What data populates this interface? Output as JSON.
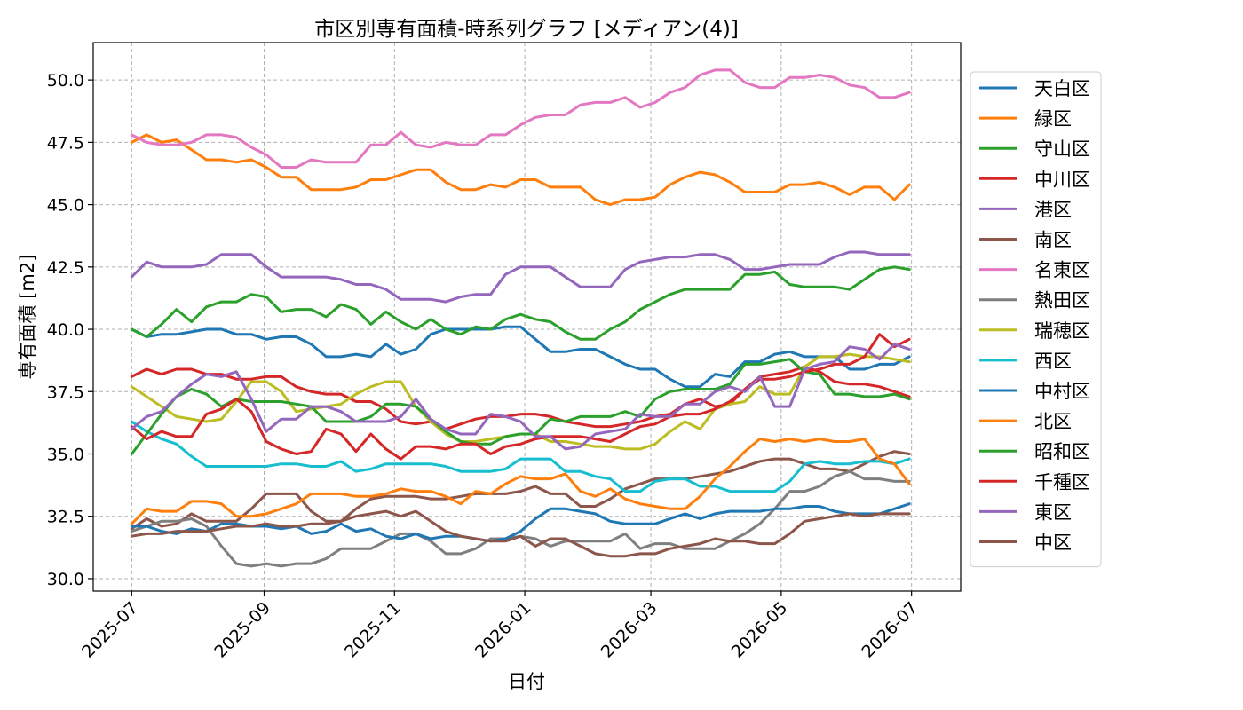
{
  "chart_data": {
    "type": "line",
    "title": "市区別専有面積-時系列グラフ [メディアン(4)]",
    "xlabel": "日付",
    "ylabel": "専有面積 [m2]",
    "x_ticks": [
      "2025-07",
      "2025-09",
      "2025-11",
      "2026-01",
      "2026-03",
      "2026-05",
      "2026-07"
    ],
    "y_ticks": [
      "30.0",
      "32.5",
      "35.0",
      "37.5",
      "40.0",
      "42.5",
      "45.0",
      "47.5",
      "50.0"
    ],
    "xlim": [
      "2025-06-13",
      "2026-07-24"
    ],
    "ylim": [
      29.5,
      51.5
    ],
    "grid": true,
    "legend_position": "right",
    "x": [
      "2025-07-01",
      "2025-07-08",
      "2025-07-15",
      "2025-07-22",
      "2025-07-29",
      "2025-08-05",
      "2025-08-12",
      "2025-08-19",
      "2025-08-26",
      "2025-09-02",
      "2025-09-09",
      "2025-09-16",
      "2025-09-23",
      "2025-09-30",
      "2025-10-07",
      "2025-10-14",
      "2025-10-21",
      "2025-10-28",
      "2025-11-04",
      "2025-11-11",
      "2025-11-18",
      "2025-11-25",
      "2025-12-02",
      "2025-12-09",
      "2025-12-16",
      "2025-12-23",
      "2025-12-30",
      "2026-01-06",
      "2026-01-13",
      "2026-01-20",
      "2026-01-27",
      "2026-02-03",
      "2026-02-10",
      "2026-02-17",
      "2026-02-24",
      "2026-03-03",
      "2026-03-10",
      "2026-03-17",
      "2026-03-24",
      "2026-03-31",
      "2026-04-07",
      "2026-04-14",
      "2026-04-21",
      "2026-04-28",
      "2026-05-05",
      "2026-05-12",
      "2026-05-19",
      "2026-05-26",
      "2026-06-02",
      "2026-06-09",
      "2026-06-16",
      "2026-06-23",
      "2026-06-30"
    ],
    "series": [
      {
        "name": "天白区",
        "color": "#1f77b4",
        "values": [
          40.0,
          39.7,
          39.8,
          39.8,
          39.9,
          40.0,
          40.0,
          39.8,
          39.8,
          39.6,
          39.7,
          39.7,
          39.4,
          38.9,
          38.9,
          39.0,
          38.9,
          39.4,
          39.0,
          39.2,
          39.8,
          40.0,
          40.0,
          40.0,
          40.0,
          40.1,
          40.1,
          39.6,
          39.1,
          39.1,
          39.2,
          39.2,
          38.9,
          38.6,
          38.4,
          38.4,
          38.0,
          37.7,
          37.7,
          38.2,
          38.1,
          38.7,
          38.7,
          39.0,
          39.1,
          38.9,
          38.9,
          38.9,
          38.4,
          38.4,
          38.6,
          38.6,
          38.9
        ]
      },
      {
        "name": "緑区",
        "color": "#ff7f0e",
        "values": [
          47.5,
          47.8,
          47.5,
          47.6,
          47.2,
          46.8,
          46.8,
          46.7,
          46.8,
          46.5,
          46.1,
          46.1,
          45.6,
          45.6,
          45.6,
          45.7,
          46.0,
          46.0,
          46.2,
          46.4,
          46.4,
          45.9,
          45.6,
          45.6,
          45.8,
          45.7,
          46.0,
          46.0,
          45.7,
          45.7,
          45.7,
          45.2,
          45.0,
          45.2,
          45.2,
          45.3,
          45.8,
          46.1,
          46.3,
          46.2,
          45.9,
          45.5,
          45.5,
          45.5,
          45.8,
          45.8,
          45.9,
          45.7,
          45.4,
          45.7,
          45.7,
          45.2,
          45.8
        ]
      },
      {
        "name": "守山区",
        "color": "#2ca02c",
        "values": [
          40.0,
          39.7,
          40.2,
          40.8,
          40.3,
          40.9,
          41.1,
          41.1,
          41.4,
          41.3,
          40.7,
          40.8,
          40.8,
          40.5,
          41.0,
          40.8,
          40.2,
          40.7,
          40.3,
          40.0,
          40.4,
          40.0,
          39.8,
          40.1,
          40.0,
          40.4,
          40.6,
          40.4,
          40.3,
          39.9,
          39.6,
          39.6,
          40.0,
          40.3,
          40.8,
          41.1,
          41.4,
          41.6,
          41.6,
          41.6,
          41.6,
          42.2,
          42.2,
          42.3,
          41.8,
          41.7,
          41.7,
          41.7,
          41.6,
          42.0,
          42.4,
          42.5,
          42.4
        ]
      },
      {
        "name": "中川区",
        "color": "#d62728",
        "values": [
          38.1,
          38.4,
          38.2,
          38.4,
          38.4,
          38.2,
          38.2,
          38.0,
          38.0,
          38.1,
          38.1,
          37.7,
          37.5,
          37.4,
          37.4,
          37.1,
          37.1,
          36.8,
          36.3,
          36.2,
          36.3,
          36.0,
          36.2,
          36.4,
          36.5,
          36.5,
          36.6,
          36.6,
          36.5,
          36.3,
          36.2,
          36.1,
          36.1,
          36.2,
          36.3,
          36.5,
          36.6,
          37.0,
          37.2,
          36.9,
          37.0,
          37.6,
          38.1,
          38.2,
          38.3,
          38.5,
          38.3,
          37.9,
          37.8,
          37.8,
          37.7,
          37.5,
          37.3
        ]
      },
      {
        "name": "港区",
        "color": "#9467bd",
        "values": [
          42.1,
          42.7,
          42.5,
          42.5,
          42.5,
          42.6,
          43.0,
          43.0,
          43.0,
          42.5,
          42.1,
          42.1,
          42.1,
          42.1,
          42.0,
          41.8,
          41.8,
          41.6,
          41.2,
          41.2,
          41.2,
          41.1,
          41.3,
          41.4,
          41.4,
          42.2,
          42.5,
          42.5,
          42.5,
          42.1,
          41.7,
          41.7,
          41.7,
          42.4,
          42.7,
          42.8,
          42.9,
          42.9,
          43.0,
          43.0,
          42.8,
          42.4,
          42.4,
          42.5,
          42.6,
          42.6,
          42.6,
          42.9,
          43.1,
          43.1,
          43.0,
          43.0,
          43.0
        ]
      },
      {
        "name": "南区",
        "color": "#8c564b",
        "values": [
          32.0,
          32.4,
          32.1,
          32.2,
          32.6,
          32.3,
          32.3,
          32.3,
          32.8,
          33.4,
          33.4,
          33.4,
          32.7,
          32.3,
          32.3,
          32.8,
          33.2,
          33.3,
          33.3,
          33.3,
          33.2,
          33.2,
          33.3,
          33.4,
          33.4,
          33.4,
          33.5,
          33.7,
          33.4,
          33.4,
          32.9,
          32.9,
          33.2,
          33.6,
          33.8,
          34.0,
          34.0,
          34.0,
          34.1,
          34.2,
          34.3,
          34.5,
          34.7,
          34.8,
          34.8,
          34.6,
          34.4,
          34.4,
          34.3,
          34.6,
          34.9,
          35.1,
          35.0
        ]
      },
      {
        "name": "名東区",
        "color": "#e377c2",
        "values": [
          47.8,
          47.5,
          47.4,
          47.4,
          47.5,
          47.8,
          47.8,
          47.7,
          47.3,
          47.0,
          46.5,
          46.5,
          46.8,
          46.7,
          46.7,
          46.7,
          47.4,
          47.4,
          47.9,
          47.4,
          47.3,
          47.5,
          47.4,
          47.4,
          47.8,
          47.8,
          48.2,
          48.5,
          48.6,
          48.6,
          49.0,
          49.1,
          49.1,
          49.3,
          48.9,
          49.1,
          49.5,
          49.7,
          50.2,
          50.4,
          50.4,
          49.9,
          49.7,
          49.7,
          50.1,
          50.1,
          50.2,
          50.1,
          49.8,
          49.7,
          49.3,
          49.3,
          49.5
        ]
      },
      {
        "name": "熱田区",
        "color": "#7f7f7f",
        "values": [
          31.9,
          32.1,
          32.3,
          32.3,
          32.4,
          32.1,
          31.3,
          30.6,
          30.5,
          30.6,
          30.5,
          30.6,
          30.6,
          30.8,
          31.2,
          31.2,
          31.2,
          31.5,
          31.8,
          31.8,
          31.5,
          31.0,
          31.0,
          31.2,
          31.6,
          31.6,
          31.7,
          31.6,
          31.3,
          31.5,
          31.5,
          31.5,
          31.5,
          31.8,
          31.2,
          31.4,
          31.4,
          31.2,
          31.2,
          31.2,
          31.5,
          31.8,
          32.2,
          32.8,
          33.5,
          33.5,
          33.7,
          34.1,
          34.3,
          34.0,
          34.0,
          33.9,
          33.9
        ]
      },
      {
        "name": "瑞穂区",
        "color": "#bcbd22",
        "values": [
          37.7,
          37.3,
          36.9,
          36.5,
          36.4,
          36.3,
          36.4,
          37.1,
          37.9,
          37.9,
          37.5,
          36.7,
          36.8,
          36.9,
          37.0,
          37.4,
          37.7,
          37.9,
          37.9,
          36.9,
          36.3,
          35.8,
          35.5,
          35.5,
          35.6,
          35.7,
          35.8,
          35.8,
          35.5,
          35.5,
          35.4,
          35.3,
          35.3,
          35.2,
          35.2,
          35.4,
          35.9,
          36.3,
          36.0,
          36.8,
          37.0,
          37.1,
          37.7,
          37.4,
          37.4,
          38.5,
          38.9,
          38.9,
          39.0,
          38.9,
          38.9,
          38.8,
          38.7
        ]
      },
      {
        "name": "西区",
        "color": "#17becf",
        "values": [
          36.3,
          35.9,
          35.6,
          35.4,
          34.9,
          34.5,
          34.5,
          34.5,
          34.5,
          34.5,
          34.6,
          34.6,
          34.5,
          34.5,
          34.7,
          34.3,
          34.4,
          34.6,
          34.6,
          34.6,
          34.6,
          34.5,
          34.3,
          34.3,
          34.3,
          34.4,
          34.8,
          34.8,
          34.8,
          34.3,
          34.3,
          34.1,
          34.0,
          33.5,
          33.5,
          33.9,
          34.0,
          34.0,
          33.7,
          33.7,
          33.5,
          33.5,
          33.5,
          33.5,
          33.9,
          34.6,
          34.7,
          34.6,
          34.6,
          34.7,
          34.7,
          34.6,
          34.8
        ]
      },
      {
        "name": "中村区",
        "color": "#1f77b4",
        "values": [
          32.1,
          32.1,
          31.9,
          31.8,
          32.0,
          31.9,
          32.2,
          32.2,
          32.1,
          32.1,
          32.0,
          32.1,
          31.8,
          31.9,
          32.2,
          31.9,
          32.0,
          31.7,
          31.6,
          31.8,
          31.6,
          31.7,
          31.7,
          31.6,
          31.5,
          31.6,
          31.9,
          32.4,
          32.8,
          32.8,
          32.7,
          32.6,
          32.3,
          32.2,
          32.2,
          32.2,
          32.4,
          32.6,
          32.4,
          32.6,
          32.7,
          32.7,
          32.7,
          32.8,
          32.8,
          32.9,
          32.9,
          32.7,
          32.6,
          32.6,
          32.6,
          32.8,
          33.0
        ]
      },
      {
        "name": "北区",
        "color": "#ff7f0e",
        "values": [
          32.2,
          32.8,
          32.7,
          32.7,
          33.1,
          33.1,
          33.0,
          32.5,
          32.5,
          32.6,
          32.8,
          33.0,
          33.4,
          33.4,
          33.4,
          33.3,
          33.3,
          33.4,
          33.6,
          33.5,
          33.5,
          33.3,
          33.0,
          33.5,
          33.4,
          33.8,
          34.1,
          34.0,
          34.0,
          34.2,
          33.5,
          33.3,
          33.6,
          33.2,
          33.0,
          32.9,
          32.8,
          32.8,
          33.3,
          34.0,
          34.5,
          35.1,
          35.6,
          35.5,
          35.6,
          35.5,
          35.6,
          35.5,
          35.5,
          35.6,
          34.8,
          34.6,
          33.8
        ]
      },
      {
        "name": "昭和区",
        "color": "#2ca02c",
        "values": [
          35.0,
          35.8,
          36.6,
          37.3,
          37.6,
          37.4,
          36.9,
          37.2,
          37.1,
          37.1,
          37.1,
          37.0,
          36.9,
          36.3,
          36.3,
          36.3,
          36.5,
          37.0,
          37.0,
          36.9,
          36.4,
          35.9,
          35.5,
          35.4,
          35.4,
          35.7,
          35.8,
          35.8,
          36.4,
          36.3,
          36.5,
          36.5,
          36.5,
          36.7,
          36.5,
          37.2,
          37.5,
          37.6,
          37.6,
          37.6,
          37.8,
          38.6,
          38.6,
          38.7,
          38.8,
          38.3,
          38.2,
          37.4,
          37.4,
          37.3,
          37.3,
          37.4,
          37.2
        ]
      },
      {
        "name": "千種区",
        "color": "#d62728",
        "values": [
          36.1,
          35.6,
          35.9,
          35.7,
          35.7,
          36.6,
          36.8,
          37.2,
          36.7,
          35.5,
          35.2,
          35.0,
          35.1,
          36.0,
          35.8,
          35.1,
          35.8,
          35.2,
          34.8,
          35.3,
          35.3,
          35.2,
          35.4,
          35.4,
          35.0,
          35.3,
          35.4,
          35.6,
          35.7,
          35.7,
          35.7,
          35.6,
          35.5,
          35.8,
          36.1,
          36.2,
          36.5,
          36.6,
          36.6,
          36.8,
          37.1,
          37.6,
          38.0,
          38.0,
          38.1,
          38.3,
          38.4,
          38.6,
          38.6,
          38.9,
          39.8,
          39.3,
          39.6
        ]
      },
      {
        "name": "東区",
        "color": "#9467bd",
        "values": [
          36.0,
          36.5,
          36.7,
          37.3,
          37.8,
          38.2,
          38.1,
          38.3,
          37.2,
          35.9,
          36.4,
          36.4,
          36.9,
          36.9,
          36.7,
          36.3,
          36.3,
          36.3,
          36.5,
          37.2,
          36.4,
          36.0,
          35.8,
          35.8,
          36.6,
          36.5,
          36.3,
          35.7,
          35.7,
          35.2,
          35.3,
          35.8,
          35.9,
          36.0,
          36.6,
          36.5,
          36.5,
          37.0,
          37.0,
          37.5,
          37.7,
          37.5,
          38.1,
          36.9,
          36.9,
          38.4,
          38.6,
          38.7,
          39.3,
          39.2,
          38.8,
          39.4,
          39.2
        ]
      },
      {
        "name": "中区",
        "color": "#8c564b",
        "values": [
          31.7,
          31.8,
          31.8,
          31.9,
          31.9,
          31.9,
          32.0,
          32.1,
          32.1,
          32.2,
          32.1,
          32.1,
          32.2,
          32.2,
          32.3,
          32.5,
          32.6,
          32.7,
          32.5,
          32.7,
          32.3,
          31.9,
          31.7,
          31.6,
          31.5,
          31.5,
          31.7,
          31.3,
          31.6,
          31.6,
          31.3,
          31.0,
          30.9,
          30.9,
          31.0,
          31.0,
          31.2,
          31.3,
          31.4,
          31.6,
          31.5,
          31.5,
          31.4,
          31.4,
          31.8,
          32.3,
          32.4,
          32.5,
          32.6,
          32.5,
          32.6,
          32.6,
          32.6
        ]
      }
    ]
  }
}
